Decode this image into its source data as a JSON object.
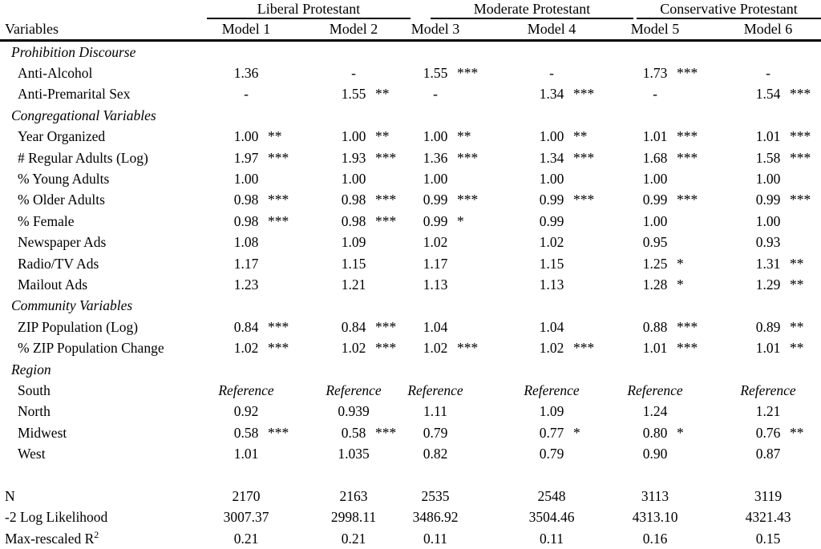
{
  "table": {
    "corner_header": "Variables",
    "groups": [
      {
        "label": "Liberal Protestant",
        "models": [
          "Model 1",
          "Model 2"
        ]
      },
      {
        "label": "Moderate Protestant",
        "models": [
          "Model 3",
          "Model 4"
        ]
      },
      {
        "label": "Conservative Protestant",
        "models": [
          "Model 5",
          "Model 6"
        ]
      }
    ],
    "rows": [
      {
        "type": "section",
        "label": "Prohibition Discourse"
      },
      {
        "type": "data",
        "label": "Anti-Alcohol",
        "values": [
          "1.36",
          "-",
          "1.55 ***",
          "-",
          "1.73 ***",
          "-"
        ]
      },
      {
        "type": "data",
        "label": "Anti-Premarital Sex",
        "values": [
          "-",
          "1.55 **",
          "-",
          "1.34 ***",
          "-",
          "1.54 ***"
        ]
      },
      {
        "type": "section",
        "label": "Congregational Variables"
      },
      {
        "type": "data",
        "label": "Year Organized",
        "values": [
          "1.00 **",
          "1.00 **",
          "1.00 **",
          "1.00 **",
          "1.01 ***",
          "1.01 ***"
        ]
      },
      {
        "type": "data",
        "label": "# Regular Adults (Log)",
        "values": [
          "1.97 ***",
          "1.93 ***",
          "1.36 ***",
          "1.34 ***",
          "1.68 ***",
          "1.58 ***"
        ]
      },
      {
        "type": "data",
        "label": "% Young Adults",
        "values": [
          "1.00",
          "1.00",
          "1.00",
          "1.00",
          "1.00",
          "1.00"
        ]
      },
      {
        "type": "data",
        "label": "% Older Adults",
        "values": [
          "0.98 ***",
          "0.98 ***",
          "0.99 ***",
          "0.99 ***",
          "0.99 ***",
          "0.99 ***"
        ]
      },
      {
        "type": "data",
        "label": "%  Female",
        "values": [
          "0.98 ***",
          "0.98 ***",
          "0.99 *",
          "0.99",
          "1.00",
          "1.00"
        ]
      },
      {
        "type": "data",
        "label": "Newspaper Ads",
        "values": [
          "1.08",
          "1.09",
          "1.02",
          "1.02",
          "0.95",
          "0.93"
        ]
      },
      {
        "type": "data",
        "label": "Radio/TV Ads",
        "values": [
          "1.17",
          "1.15",
          "1.17",
          "1.15",
          "1.25 *",
          "1.31 **"
        ]
      },
      {
        "type": "data",
        "label": "Mailout Ads",
        "values": [
          "1.23",
          "1.21",
          "1.13",
          "1.13",
          "1.28 *",
          "1.29 **"
        ]
      },
      {
        "type": "section",
        "label": "Community Variables"
      },
      {
        "type": "data",
        "label": "ZIP Population (Log)",
        "values": [
          "0.84 ***",
          "0.84 ***",
          "1.04",
          "1.04",
          "0.88 ***",
          "0.89 **"
        ]
      },
      {
        "type": "data",
        "label": "% ZIP Population Change",
        "values": [
          "1.02 ***",
          "1.02 ***",
          "1.02 ***",
          "1.02 ***",
          "1.01 ***",
          "1.01 **"
        ]
      },
      {
        "type": "section",
        "label": "Region"
      },
      {
        "type": "data",
        "label": "South",
        "values": [
          "Reference",
          "Reference",
          "Reference",
          "Reference",
          "Reference",
          "Reference"
        ]
      },
      {
        "type": "data",
        "label": "North",
        "values": [
          "0.92",
          "0.939",
          "1.11",
          "1.09",
          "1.24",
          "1.21"
        ]
      },
      {
        "type": "data",
        "label": "Midwest",
        "values": [
          "0.58 ***",
          "0.58 ***",
          "0.79",
          "0.77*",
          "0.80 *",
          "0.76 **"
        ]
      },
      {
        "type": "data",
        "label": "West",
        "values": [
          "1.01",
          "1.035",
          "0.82",
          "0.79",
          "0.90",
          "0.87"
        ]
      },
      {
        "type": "spacer"
      },
      {
        "type": "stat",
        "label": "N",
        "values": [
          "2170",
          "2163",
          "2535",
          "2548",
          "3113",
          "3119"
        ]
      },
      {
        "type": "stat",
        "label": "-2 Log Likelihood",
        "values": [
          "3007.37",
          "2998.11",
          "3486.92",
          "3504.46",
          "4313.10",
          "4321.43"
        ]
      },
      {
        "type": "stat",
        "label": "Max-rescaled R",
        "sup": "2",
        "values": [
          "0.21",
          "0.21",
          "0.11",
          "0.11",
          "0.16",
          "0.15"
        ]
      }
    ]
  }
}
